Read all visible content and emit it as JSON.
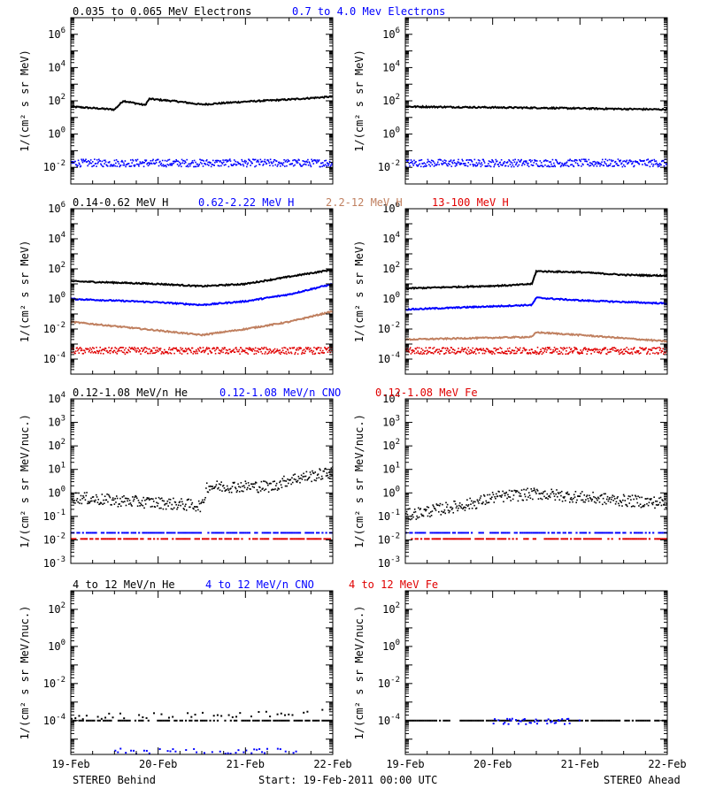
{
  "colors": {
    "black": "#000000",
    "blue": "#0000ff",
    "tan": "#c08060",
    "red": "#e00000"
  },
  "rows": [
    {
      "legend": [
        {
          "text": "0.035 to 0.065 MeV Electrons",
          "color": "black"
        },
        {
          "text": "0.7 to 4.0 Mev Electrons",
          "color": "blue"
        }
      ]
    },
    {
      "legend": [
        {
          "text": "0.14-0.62 MeV H",
          "color": "black"
        },
        {
          "text": "0.62-2.22 MeV H",
          "color": "blue"
        },
        {
          "text": "2.2-12 MeV H",
          "color": "tan"
        },
        {
          "text": "13-100 MeV H",
          "color": "red"
        }
      ]
    },
    {
      "legend": [
        {
          "text": "0.12-1.08 MeV/n He",
          "color": "black"
        },
        {
          "text": "0.12-1.08 MeV/n CNO",
          "color": "blue"
        },
        {
          "text": "0.12-1.08 MeV Fe",
          "color": "red"
        }
      ]
    },
    {
      "legend": [
        {
          "text": "4 to 12 MeV/n He",
          "color": "black"
        },
        {
          "text": "4 to 12 MeV/n CNO",
          "color": "blue"
        },
        {
          "text": "4 to 12 MeV Fe",
          "color": "red"
        }
      ]
    }
  ],
  "footer": {
    "left": "STEREO Behind",
    "center": "Start: 19-Feb-2011 00:00 UTC",
    "right": "STEREO Ahead"
  },
  "chart_data": [
    {
      "type": "scatter",
      "spacecraft": "STEREO Behind",
      "ylabel": "1/(cm² s sr MeV)",
      "yscale": "log",
      "ylim": [
        0.001,
        10000000
      ],
      "xlim": [
        "19-Feb",
        "22-Feb"
      ],
      "x_ticks": [
        "19-Feb",
        "20-Feb",
        "21-Feb",
        "22-Feb"
      ],
      "y_ticks": [
        {
          "exp": -2
        },
        {
          "exp": 0
        },
        {
          "exp": 2
        },
        {
          "exp": 4
        },
        {
          "exp": 6
        }
      ],
      "series": [
        {
          "name": "0.035 to 0.065 MeV Electrons",
          "color": "black",
          "style": "line",
          "points": [
            [
              0,
              45
            ],
            [
              0.5,
              30
            ],
            [
              0.6,
              100
            ],
            [
              0.85,
              55
            ],
            [
              0.9,
              130
            ],
            [
              1.2,
              95
            ],
            [
              1.5,
              60
            ],
            [
              2,
              90
            ],
            [
              2.5,
              120
            ],
            [
              3,
              180
            ]
          ]
        },
        {
          "name": "0.7 to 4.0 Mev Electrons",
          "color": "blue",
          "style": "noise",
          "points": [
            [
              0,
              0.02
            ],
            [
              3,
              0.02
            ]
          ]
        }
      ]
    },
    {
      "type": "scatter",
      "spacecraft": "STEREO Ahead",
      "ylabel": "1/(cm² s sr MeV)",
      "yscale": "log",
      "ylim": [
        0.001,
        10000000
      ],
      "xlim": [
        "19-Feb",
        "22-Feb"
      ],
      "x_ticks": [
        "19-Feb",
        "20-Feb",
        "21-Feb",
        "22-Feb"
      ],
      "y_ticks": [
        {
          "exp": -2
        },
        {
          "exp": 0
        },
        {
          "exp": 2
        },
        {
          "exp": 4
        },
        {
          "exp": 6
        }
      ],
      "series": [
        {
          "name": "0.035 to 0.065 MeV Electrons",
          "color": "black",
          "style": "line",
          "points": [
            [
              0,
              45
            ],
            [
              1.5,
              38
            ],
            [
              3,
              30
            ]
          ]
        },
        {
          "name": "0.7 to 4.0 Mev Electrons",
          "color": "blue",
          "style": "noise",
          "points": [
            [
              0,
              0.02
            ],
            [
              3,
              0.02
            ]
          ]
        }
      ]
    },
    {
      "type": "scatter",
      "spacecraft": "STEREO Behind",
      "ylabel": "1/(cm² s sr MeV)",
      "yscale": "log",
      "ylim": [
        1e-05,
        1000000
      ],
      "xlim": [
        "19-Feb",
        "22-Feb"
      ],
      "x_ticks": [
        "19-Feb",
        "20-Feb",
        "21-Feb",
        "22-Feb"
      ],
      "y_ticks": [
        {
          "exp": -4
        },
        {
          "exp": -2
        },
        {
          "exp": 0
        },
        {
          "exp": 2
        },
        {
          "exp": 4
        },
        {
          "exp": 6
        }
      ],
      "series": [
        {
          "name": "0.14-0.62 MeV H",
          "color": "black",
          "style": "line",
          "points": [
            [
              0,
              15
            ],
            [
              1,
              10
            ],
            [
              1.5,
              7
            ],
            [
              2,
              10
            ],
            [
              2.5,
              30
            ],
            [
              3,
              90
            ]
          ]
        },
        {
          "name": "0.62-2.22 MeV H",
          "color": "blue",
          "style": "line",
          "points": [
            [
              0,
              1
            ],
            [
              1,
              0.6
            ],
            [
              1.5,
              0.4
            ],
            [
              2,
              0.7
            ],
            [
              2.5,
              2
            ],
            [
              3,
              10
            ]
          ]
        },
        {
          "name": "2.2-12 MeV H",
          "color": "tan",
          "style": "line",
          "points": [
            [
              0,
              0.03
            ],
            [
              1,
              0.008
            ],
            [
              1.5,
              0.004
            ],
            [
              2,
              0.01
            ],
            [
              2.5,
              0.03
            ],
            [
              3,
              0.15
            ]
          ]
        },
        {
          "name": "13-100 MeV H",
          "color": "red",
          "style": "noise",
          "points": [
            [
              0,
              0.0004
            ],
            [
              3,
              0.0004
            ]
          ]
        }
      ]
    },
    {
      "type": "scatter",
      "spacecraft": "STEREO Ahead",
      "ylabel": "1/(cm² s sr MeV)",
      "yscale": "log",
      "ylim": [
        1e-05,
        1000000
      ],
      "xlim": [
        "19-Feb",
        "22-Feb"
      ],
      "x_ticks": [
        "19-Feb",
        "20-Feb",
        "21-Feb",
        "22-Feb"
      ],
      "y_ticks": [
        {
          "exp": -4
        },
        {
          "exp": -2
        },
        {
          "exp": 0
        },
        {
          "exp": 2
        },
        {
          "exp": 4
        },
        {
          "exp": 6
        }
      ],
      "series": [
        {
          "name": "0.14-0.62 MeV H",
          "color": "black",
          "style": "line",
          "points": [
            [
              0,
              5
            ],
            [
              1.2,
              8
            ],
            [
              1.45,
              10
            ],
            [
              1.5,
              70
            ],
            [
              2,
              60
            ],
            [
              2.5,
              40
            ],
            [
              3,
              35
            ]
          ]
        },
        {
          "name": "0.62-2.22 MeV H",
          "color": "blue",
          "style": "line",
          "points": [
            [
              0,
              0.2
            ],
            [
              1.45,
              0.4
            ],
            [
              1.5,
              1.2
            ],
            [
              2,
              0.8
            ],
            [
              3,
              0.5
            ]
          ]
        },
        {
          "name": "2.2-12 MeV H",
          "color": "tan",
          "style": "line",
          "points": [
            [
              0,
              0.002
            ],
            [
              1.45,
              0.003
            ],
            [
              1.5,
              0.006
            ],
            [
              2,
              0.004
            ],
            [
              3,
              0.0015
            ]
          ]
        },
        {
          "name": "13-100 MeV H",
          "color": "red",
          "style": "noise",
          "points": [
            [
              0,
              0.0004
            ],
            [
              3,
              0.0004
            ]
          ]
        }
      ]
    },
    {
      "type": "scatter",
      "spacecraft": "STEREO Behind",
      "ylabel": "1/(cm² s sr MeV/nuc.)",
      "yscale": "log",
      "ylim": [
        0.001,
        10000
      ],
      "xlim": [
        "19-Feb",
        "22-Feb"
      ],
      "x_ticks": [
        "19-Feb",
        "20-Feb",
        "21-Feb",
        "22-Feb"
      ],
      "y_ticks": [
        {
          "exp": -3
        },
        {
          "exp": -2
        },
        {
          "exp": -1
        },
        {
          "exp": 0
        },
        {
          "exp": 1
        },
        {
          "exp": 2
        },
        {
          "exp": 3
        },
        {
          "exp": 4
        }
      ],
      "series": [
        {
          "name": "0.12-1.08 MeV/n He",
          "color": "black",
          "style": "scatter",
          "points": [
            [
              0,
              0.7
            ],
            [
              0.5,
              0.5
            ],
            [
              1,
              0.4
            ],
            [
              1.5,
              0.3
            ],
            [
              1.55,
              2
            ],
            [
              2,
              2
            ],
            [
              2.3,
              2
            ],
            [
              2.5,
              4
            ],
            [
              3,
              8
            ]
          ]
        },
        {
          "name": "0.12-1.08 MeV/n CNO",
          "color": "blue",
          "style": "dashes",
          "points": [
            [
              0,
              0.02
            ],
            [
              3,
              0.02
            ]
          ]
        },
        {
          "name": "0.12-1.08 MeV Fe",
          "color": "red",
          "style": "dashes",
          "points": [
            [
              0,
              0.011
            ],
            [
              3,
              0.011
            ]
          ]
        }
      ]
    },
    {
      "type": "scatter",
      "spacecraft": "STEREO Ahead",
      "ylabel": "1/(cm² s sr MeV/nuc.)",
      "yscale": "log",
      "ylim": [
        0.001,
        10000
      ],
      "xlim": [
        "19-Feb",
        "22-Feb"
      ],
      "x_ticks": [
        "19-Feb",
        "20-Feb",
        "21-Feb",
        "22-Feb"
      ],
      "y_ticks": [
        {
          "exp": -3
        },
        {
          "exp": -2
        },
        {
          "exp": -1
        },
        {
          "exp": 0
        },
        {
          "exp": 1
        },
        {
          "exp": 2
        },
        {
          "exp": 3
        },
        {
          "exp": 4
        }
      ],
      "series": [
        {
          "name": "0.12-1.08 MeV/n He",
          "color": "black",
          "style": "scatter",
          "points": [
            [
              0,
              0.12
            ],
            [
              0.8,
              0.4
            ],
            [
              1,
              0.7
            ],
            [
              1.5,
              1
            ],
            [
              2,
              0.7
            ],
            [
              2.5,
              0.5
            ],
            [
              3,
              0.4
            ]
          ]
        },
        {
          "name": "0.12-1.08 MeV/n CNO",
          "color": "blue",
          "style": "dashes",
          "points": [
            [
              0,
              0.02
            ],
            [
              3,
              0.02
            ]
          ]
        },
        {
          "name": "0.12-1.08 MeV Fe",
          "color": "red",
          "style": "dashes",
          "points": [
            [
              0,
              0.011
            ],
            [
              3,
              0.011
            ]
          ]
        }
      ]
    },
    {
      "type": "scatter",
      "spacecraft": "STEREO Behind",
      "ylabel": "1/(cm² s sr MeV/nuc.)",
      "yscale": "log",
      "ylim": [
        1.5e-06,
        1000
      ],
      "xlim": [
        "19-Feb",
        "22-Feb"
      ],
      "x_ticks": [
        "19-Feb",
        "20-Feb",
        "21-Feb",
        "22-Feb"
      ],
      "y_ticks": [
        {
          "exp": -4
        },
        {
          "exp": -2
        },
        {
          "exp": 0
        },
        {
          "exp": 2
        }
      ],
      "series": [
        {
          "name": "4 to 12 MeV/n He",
          "color": "black",
          "style": "sparse",
          "points": [
            [
              0,
              0.00018
            ],
            [
              2.5,
              0.00025
            ],
            [
              3,
              0.0005
            ]
          ]
        },
        {
          "name": "4 to 12 MeV/n He",
          "color": "black",
          "style": "dashes",
          "points": [
            [
              0,
              0.0001
            ],
            [
              3,
              0.0001
            ]
          ]
        },
        {
          "name": "4 to 12 MeV/n CNO",
          "color": "blue",
          "style": "sparse",
          "points": [
            [
              0.5,
              2.5e-06
            ],
            [
              2.6,
              2.5e-06
            ]
          ]
        }
      ]
    },
    {
      "type": "scatter",
      "spacecraft": "STEREO Ahead",
      "ylabel": "1/(cm² s sr MeV/nuc.)",
      "yscale": "log",
      "ylim": [
        1.5e-06,
        1000
      ],
      "xlim": [
        "19-Feb",
        "22-Feb"
      ],
      "x_ticks": [
        "19-Feb",
        "20-Feb",
        "21-Feb",
        "22-Feb"
      ],
      "y_ticks": [
        {
          "exp": -4
        },
        {
          "exp": -2
        },
        {
          "exp": 0
        },
        {
          "exp": 2
        }
      ],
      "series": [
        {
          "name": "4 to 12 MeV/n He",
          "color": "black",
          "style": "dashes",
          "points": [
            [
              0,
              0.0001
            ],
            [
              3,
              0.0001
            ]
          ]
        },
        {
          "name": "4 to 12 MeV/n CNO",
          "color": "blue",
          "style": "sparse",
          "points": [
            [
              1.0,
              0.0001
            ],
            [
              2.0,
              0.0001
            ]
          ]
        }
      ]
    }
  ]
}
